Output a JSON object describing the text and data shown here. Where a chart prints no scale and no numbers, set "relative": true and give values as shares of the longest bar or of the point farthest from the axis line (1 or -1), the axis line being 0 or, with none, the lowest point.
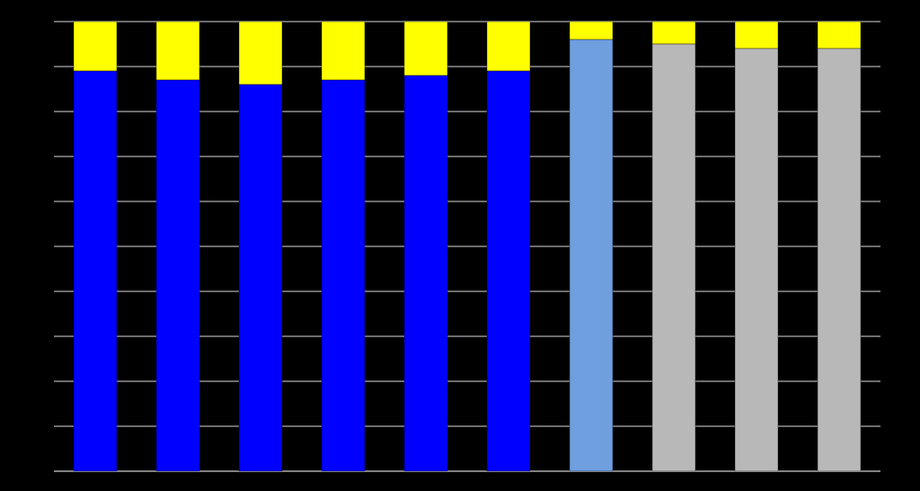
{
  "chart_data": {
    "type": "bar",
    "stacked": true,
    "relative": true,
    "grid": "y",
    "categories": [
      null,
      null,
      null,
      null,
      null,
      null,
      null,
      null,
      null,
      null
    ],
    "series": [
      {
        "color": "#0000ff",
        "colors": [
          "#0000ff",
          "#0000ff",
          "#0000ff",
          "#0000ff",
          "#0000ff",
          "#0000ff",
          "#6f9fdf",
          "#b8b8b8",
          "#b8b8b8",
          "#b8b8b8"
        ],
        "values": [
          0.89,
          0.87,
          0.86,
          0.87,
          0.88,
          0.89,
          0.96,
          0.95,
          0.94,
          0.94
        ]
      },
      {
        "color": "#ffff00",
        "values": [
          0.11,
          0.13,
          0.14,
          0.13,
          0.12,
          0.11,
          0.04,
          0.05,
          0.06,
          0.06
        ]
      }
    ]
  }
}
